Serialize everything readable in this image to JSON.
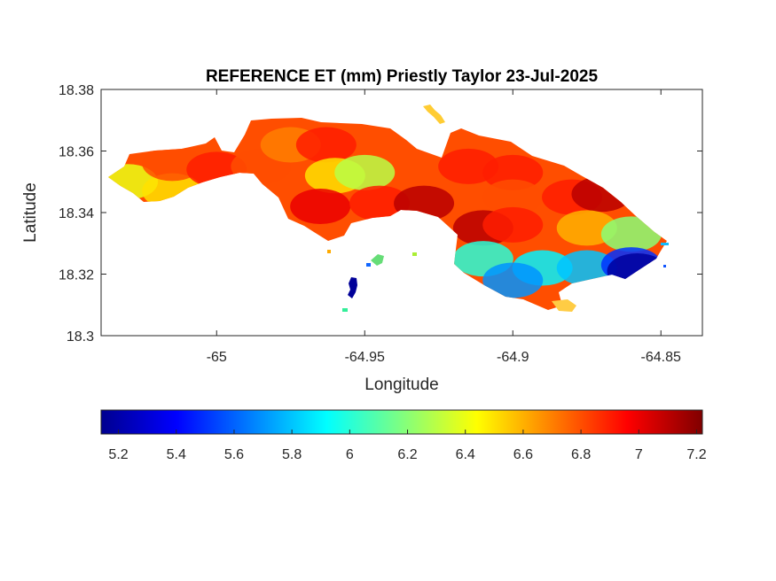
{
  "chart_data": {
    "type": "heatmap",
    "title": "REFERENCE ET (mm) Priestly Taylor 23-Jul-2025",
    "xlabel": "Longitude",
    "ylabel": "Latitude",
    "xlim": [
      -65.039,
      -64.836
    ],
    "ylim": [
      18.3,
      18.38
    ],
    "xticks": [
      -65,
      -64.95,
      -64.9,
      -64.85
    ],
    "xtick_labels": [
      "-65",
      "-64.95",
      "-64.9",
      "-64.85"
    ],
    "yticks": [
      18.3,
      18.32,
      18.34,
      18.36,
      18.38
    ],
    "ytick_labels": [
      "18.3",
      "18.32",
      "18.34",
      "18.36",
      "18.38"
    ],
    "colorbar": {
      "placement": "bottom",
      "colormap": "jet",
      "range": [
        5.14,
        7.22
      ],
      "ticks": [
        5.2,
        5.4,
        5.6,
        5.8,
        6,
        6.2,
        6.4,
        6.6,
        6.8,
        7,
        7.2
      ],
      "tick_labels": [
        "5.2",
        "5.4",
        "5.6",
        "5.8",
        "6",
        "6.2",
        "6.4",
        "6.6",
        "6.8",
        "7",
        "7.2"
      ]
    },
    "grid": false,
    "region_values": [
      {
        "lon": -65.03,
        "lat": 18.35,
        "value": 6.4
      },
      {
        "lon": -65.015,
        "lat": 18.347,
        "value": 6.5
      },
      {
        "lon": -65.015,
        "lat": 18.356,
        "value": 6.8
      },
      {
        "lon": -65.0,
        "lat": 18.354,
        "value": 6.9
      },
      {
        "lon": -64.985,
        "lat": 18.355,
        "value": 6.8
      },
      {
        "lon": -64.975,
        "lat": 18.362,
        "value": 6.7
      },
      {
        "lon": -64.963,
        "lat": 18.362,
        "value": 6.9
      },
      {
        "lon": -64.96,
        "lat": 18.352,
        "value": 6.5
      },
      {
        "lon": -64.95,
        "lat": 18.353,
        "value": 6.3
      },
      {
        "lon": -64.965,
        "lat": 18.342,
        "value": 7.0
      },
      {
        "lon": -64.945,
        "lat": 18.343,
        "value": 6.9
      },
      {
        "lon": -64.93,
        "lat": 18.343,
        "value": 7.1
      },
      {
        "lon": -64.915,
        "lat": 18.355,
        "value": 6.9
      },
      {
        "lon": -64.9,
        "lat": 18.353,
        "value": 6.9
      },
      {
        "lon": -64.9,
        "lat": 18.345,
        "value": 6.8
      },
      {
        "lon": -64.88,
        "lat": 18.345,
        "value": 6.9
      },
      {
        "lon": -64.87,
        "lat": 18.346,
        "value": 7.1
      },
      {
        "lon": -64.91,
        "lat": 18.335,
        "value": 7.1
      },
      {
        "lon": -64.9,
        "lat": 18.336,
        "value": 6.9
      },
      {
        "lon": -64.875,
        "lat": 18.335,
        "value": 6.6
      },
      {
        "lon": -64.86,
        "lat": 18.333,
        "value": 6.2
      },
      {
        "lon": -64.91,
        "lat": 18.325,
        "value": 6.0
      },
      {
        "lon": -64.89,
        "lat": 18.322,
        "value": 5.9
      },
      {
        "lon": -64.875,
        "lat": 18.322,
        "value": 5.8
      },
      {
        "lon": -64.86,
        "lat": 18.323,
        "value": 5.5
      },
      {
        "lon": -64.858,
        "lat": 18.321,
        "value": 5.2
      },
      {
        "lon": -64.9,
        "lat": 18.318,
        "value": 5.7
      },
      {
        "lon": -64.954,
        "lat": 18.317,
        "value": 5.15
      },
      {
        "lon": -64.948,
        "lat": 18.325,
        "value": 6.2
      }
    ]
  }
}
